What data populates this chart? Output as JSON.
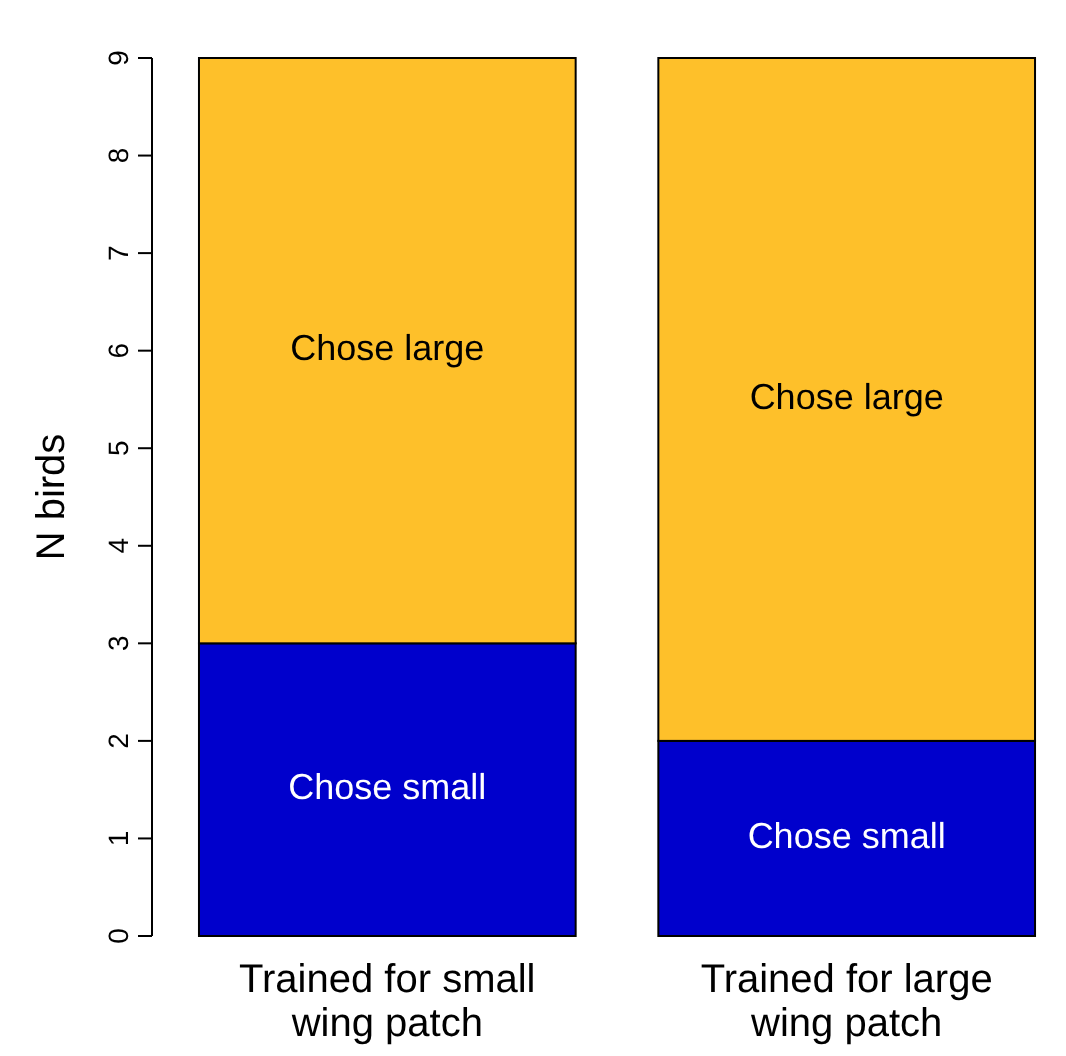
{
  "chart_data": {
    "type": "bar",
    "stacked": true,
    "ylabel": "N birds",
    "categories": [
      "Trained for small wing patch",
      "Trained for large wing patch"
    ],
    "series": [
      {
        "name": "Chose small",
        "color": "#0000cc",
        "values": [
          3,
          2
        ]
      },
      {
        "name": "Chose large",
        "color": "#fec02a",
        "values": [
          6,
          7
        ]
      }
    ],
    "ylim": [
      0,
      9
    ],
    "yticks": [
      0,
      1,
      2,
      3,
      4,
      5,
      6,
      7,
      8,
      9
    ],
    "grid": false
  }
}
